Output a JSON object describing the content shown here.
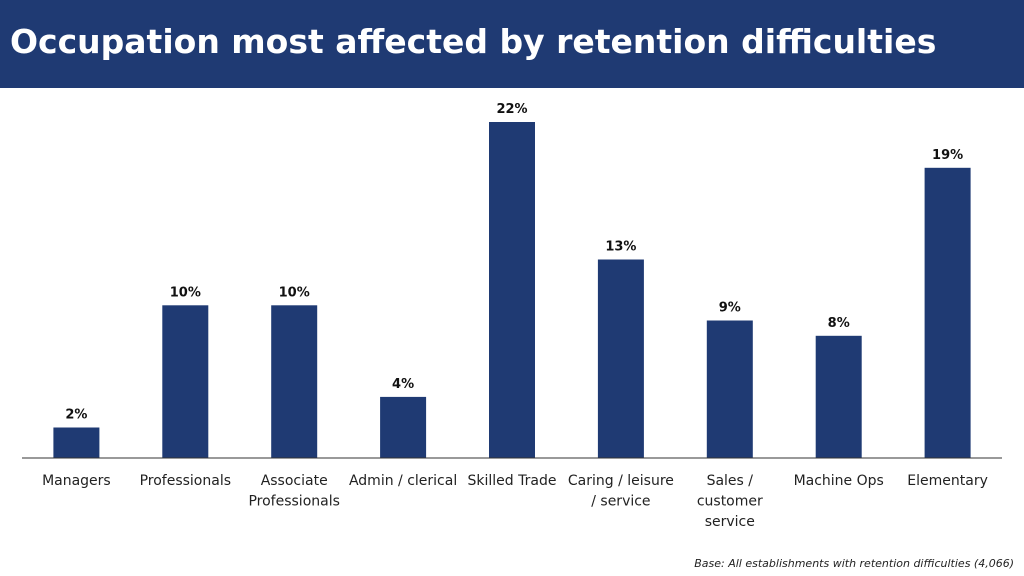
{
  "header": {
    "title": "Occupation most affected by retention difficulties"
  },
  "footnote": "Base: All establishments  with retention difficulties (4,066)",
  "colors": {
    "title_bg": "#1f3a73",
    "bar": "#1f3a73",
    "axis": "#333333"
  },
  "chart_data": {
    "type": "bar",
    "title": "Occupation most affected by retention difficulties",
    "categories": [
      [
        "Managers"
      ],
      [
        "Professionals"
      ],
      [
        "Associate",
        "Professionals"
      ],
      [
        "Admin / clerical"
      ],
      [
        "Skilled Trade"
      ],
      [
        "Caring / leisure",
        "/ service"
      ],
      [
        "Sales /",
        "customer",
        "service"
      ],
      [
        "Machine Ops"
      ],
      [
        "Elementary"
      ]
    ],
    "values": [
      2,
      10,
      10,
      4,
      22,
      13,
      9,
      8,
      19
    ],
    "value_labels": [
      "2%",
      "10%",
      "10%",
      "4%",
      "22%",
      "13%",
      "9%",
      "8%",
      "19%"
    ],
    "unit": "%",
    "xlabel": "",
    "ylabel": "",
    "ylim": [
      0,
      22
    ],
    "grid": false,
    "legend": "none"
  }
}
